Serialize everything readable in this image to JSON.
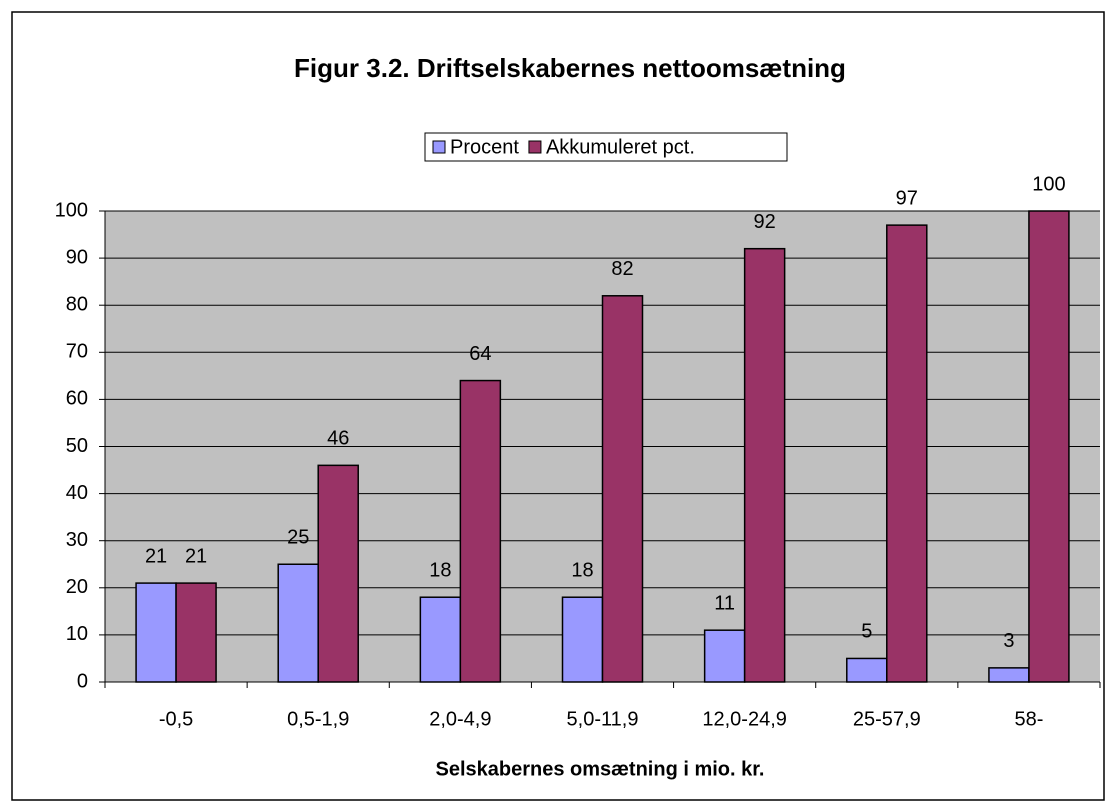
{
  "chart_data": {
    "type": "bar",
    "title": "Figur 3.2. Driftselskabernes nettoomsætning",
    "x_label": "Selskabernes omsætning i mio. kr.",
    "categories": [
      "-0,5",
      "0,5-1,9",
      "2,0-4,9",
      "5,0-11,9",
      "12,0-24,9",
      "25-57,9",
      "58-"
    ],
    "series": [
      {
        "name": "Procent",
        "color": "#9999ff",
        "values": [
          21,
          25,
          18,
          18,
          11,
          5,
          3
        ]
      },
      {
        "name": "Akkumuleret pct.",
        "color": "#993366",
        "values": [
          21,
          46,
          64,
          82,
          92,
          97,
          100
        ]
      }
    ],
    "ylim": [
      0,
      100
    ],
    "yticks": [
      0,
      10,
      20,
      30,
      40,
      50,
      60,
      70,
      80,
      90,
      100
    ],
    "grid": true,
    "legend": "top"
  }
}
